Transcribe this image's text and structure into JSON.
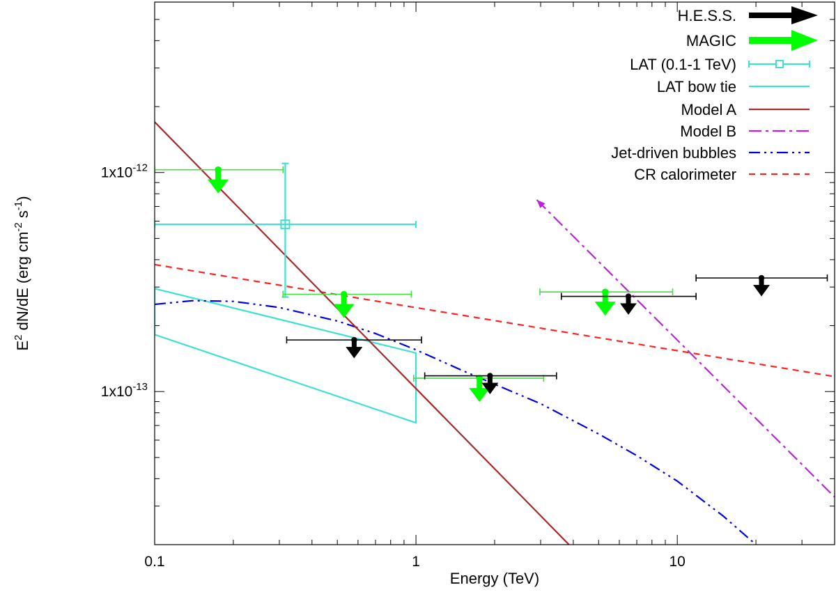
{
  "chart_data": {
    "type": "scatter",
    "title": "",
    "xlabel": "Energy (TeV)",
    "ylabel_parts": {
      "e": "E",
      "exp2": "2",
      "dnde": " dN/dE (erg cm",
      "expm2": "-2",
      "s": " s",
      "expm1": "-1",
      "close": ")"
    },
    "x_scale": "log",
    "y_scale": "log",
    "xlim": [
      0.1,
      40
    ],
    "ylim": [
      2e-14,
      6e-12
    ],
    "x_ticks": [
      {
        "v": 0.1,
        "label": "0.1"
      },
      {
        "v": 1,
        "label": "1"
      },
      {
        "v": 10,
        "label": "10"
      }
    ],
    "y_ticks": [
      {
        "v": 1e-13,
        "mant": "1x10",
        "exp": "-13"
      },
      {
        "v": 1e-12,
        "mant": "1x10",
        "exp": "-12"
      }
    ],
    "grid": false,
    "legend_position": "top-right",
    "colors": {
      "hess": "#000000",
      "magic": "#00ff00",
      "magic_bar": "#44dd44",
      "lat": "#40e0d0",
      "model_a": "#a52a2a",
      "model_b": "#bf1fdf",
      "jet": "#0000e0",
      "cr": "#ff2020"
    },
    "legend": [
      {
        "id": "hess",
        "label": "H.E.S.S."
      },
      {
        "id": "magic",
        "label": "MAGIC"
      },
      {
        "id": "lat",
        "label": "LAT (0.1-1 TeV)"
      },
      {
        "id": "bowtie",
        "label": "LAT bow tie"
      },
      {
        "id": "model_a",
        "label": "Model A"
      },
      {
        "id": "model_b",
        "label": "Model B"
      },
      {
        "id": "jet",
        "label": "Jet-driven bubbles"
      },
      {
        "id": "cr",
        "label": "CR calorimeter"
      }
    ],
    "series": {
      "hess_upper_limits": [
        {
          "x": 0.58,
          "xmin": 0.32,
          "xmax": 1.05,
          "y": 1.72e-13
        },
        {
          "x": 1.92,
          "xmin": 1.08,
          "xmax": 3.45,
          "y": 1.18e-13
        },
        {
          "x": 6.5,
          "xmin": 3.6,
          "xmax": 11.8,
          "y": 2.72e-13
        },
        {
          "x": 21.0,
          "xmin": 11.8,
          "xmax": 37.5,
          "y": 3.3e-13
        }
      ],
      "magic_upper_limits": [
        {
          "x": 0.175,
          "xmin": 0.1,
          "xmax": 0.31,
          "y": 1.03e-12
        },
        {
          "x": 0.53,
          "xmin": 0.31,
          "xmax": 0.96,
          "y": 2.78e-13
        },
        {
          "x": 1.75,
          "xmin": 0.98,
          "xmax": 3.08,
          "y": 1.15e-13
        },
        {
          "x": 5.3,
          "xmin": 2.98,
          "xmax": 9.6,
          "y": 2.85e-13
        }
      ],
      "lat_point": {
        "x": 0.316,
        "xmin": 0.1,
        "xmax": 1.0,
        "y": 5.8e-13,
        "ymin": 2.7e-13,
        "ymax": 1.1e-12
      },
      "lat_bowtie": [
        {
          "x": 0.1,
          "y": 2.95e-13
        },
        {
          "x": 1.0,
          "y": 1.5e-13
        },
        {
          "x": 1.0,
          "y": 7.2e-14
        },
        {
          "x": 0.1,
          "y": 1.82e-13
        }
      ],
      "model_a": [
        {
          "x": 0.1,
          "y": 1.7e-12
        },
        {
          "x": 3.85,
          "y": 2e-14
        }
      ],
      "model_b": [
        {
          "x": 2.9,
          "y": 7.5e-13
        },
        {
          "x": 40,
          "y": 3.3e-14
        }
      ],
      "jet_bubbles": [
        {
          "x": 0.1,
          "y": 2.5e-13
        },
        {
          "x": 0.14,
          "y": 2.6e-13
        },
        {
          "x": 0.2,
          "y": 2.58e-13
        },
        {
          "x": 0.3,
          "y": 2.42e-13
        },
        {
          "x": 0.5,
          "y": 2.1e-13
        },
        {
          "x": 0.7,
          "y": 1.84e-13
        },
        {
          "x": 1.0,
          "y": 1.55e-13
        },
        {
          "x": 1.5,
          "y": 1.25e-13
        },
        {
          "x": 2.0,
          "y": 1.08e-13
        },
        {
          "x": 3.0,
          "y": 8.8e-14
        },
        {
          "x": 5.0,
          "y": 6.4e-14
        },
        {
          "x": 7.0,
          "y": 5.1e-14
        },
        {
          "x": 10.0,
          "y": 3.9e-14
        },
        {
          "x": 15.0,
          "y": 2.7e-14
        },
        {
          "x": 20.0,
          "y": 2e-14
        }
      ],
      "cr_calorimeter": [
        {
          "x": 0.1,
          "y": 3.8e-13
        },
        {
          "x": 40,
          "y": 1.17e-13
        }
      ]
    }
  }
}
